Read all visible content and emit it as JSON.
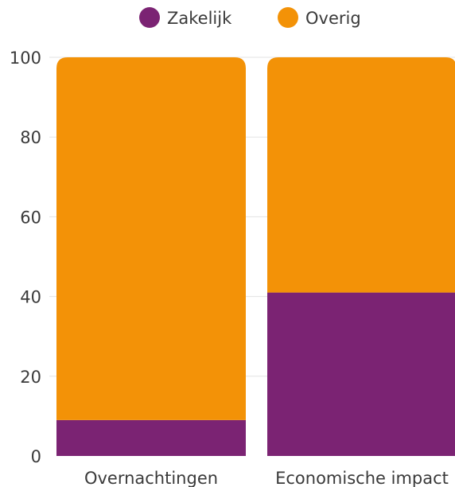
{
  "chart_data": {
    "type": "bar",
    "stacked": true,
    "categories": [
      "Overnachtingen",
      "Economische impact"
    ],
    "series": [
      {
        "name": "Zakelijk",
        "values": [
          9,
          41
        ],
        "color": "#7b2373"
      },
      {
        "name": "Overig",
        "values": [
          91,
          59
        ],
        "color": "#f39207"
      }
    ],
    "title": "",
    "xlabel": "",
    "ylabel": "",
    "ylim": [
      0,
      100
    ],
    "yticks": [
      0,
      20,
      40,
      60,
      80,
      100
    ],
    "grid": true,
    "legend": "top-center"
  }
}
